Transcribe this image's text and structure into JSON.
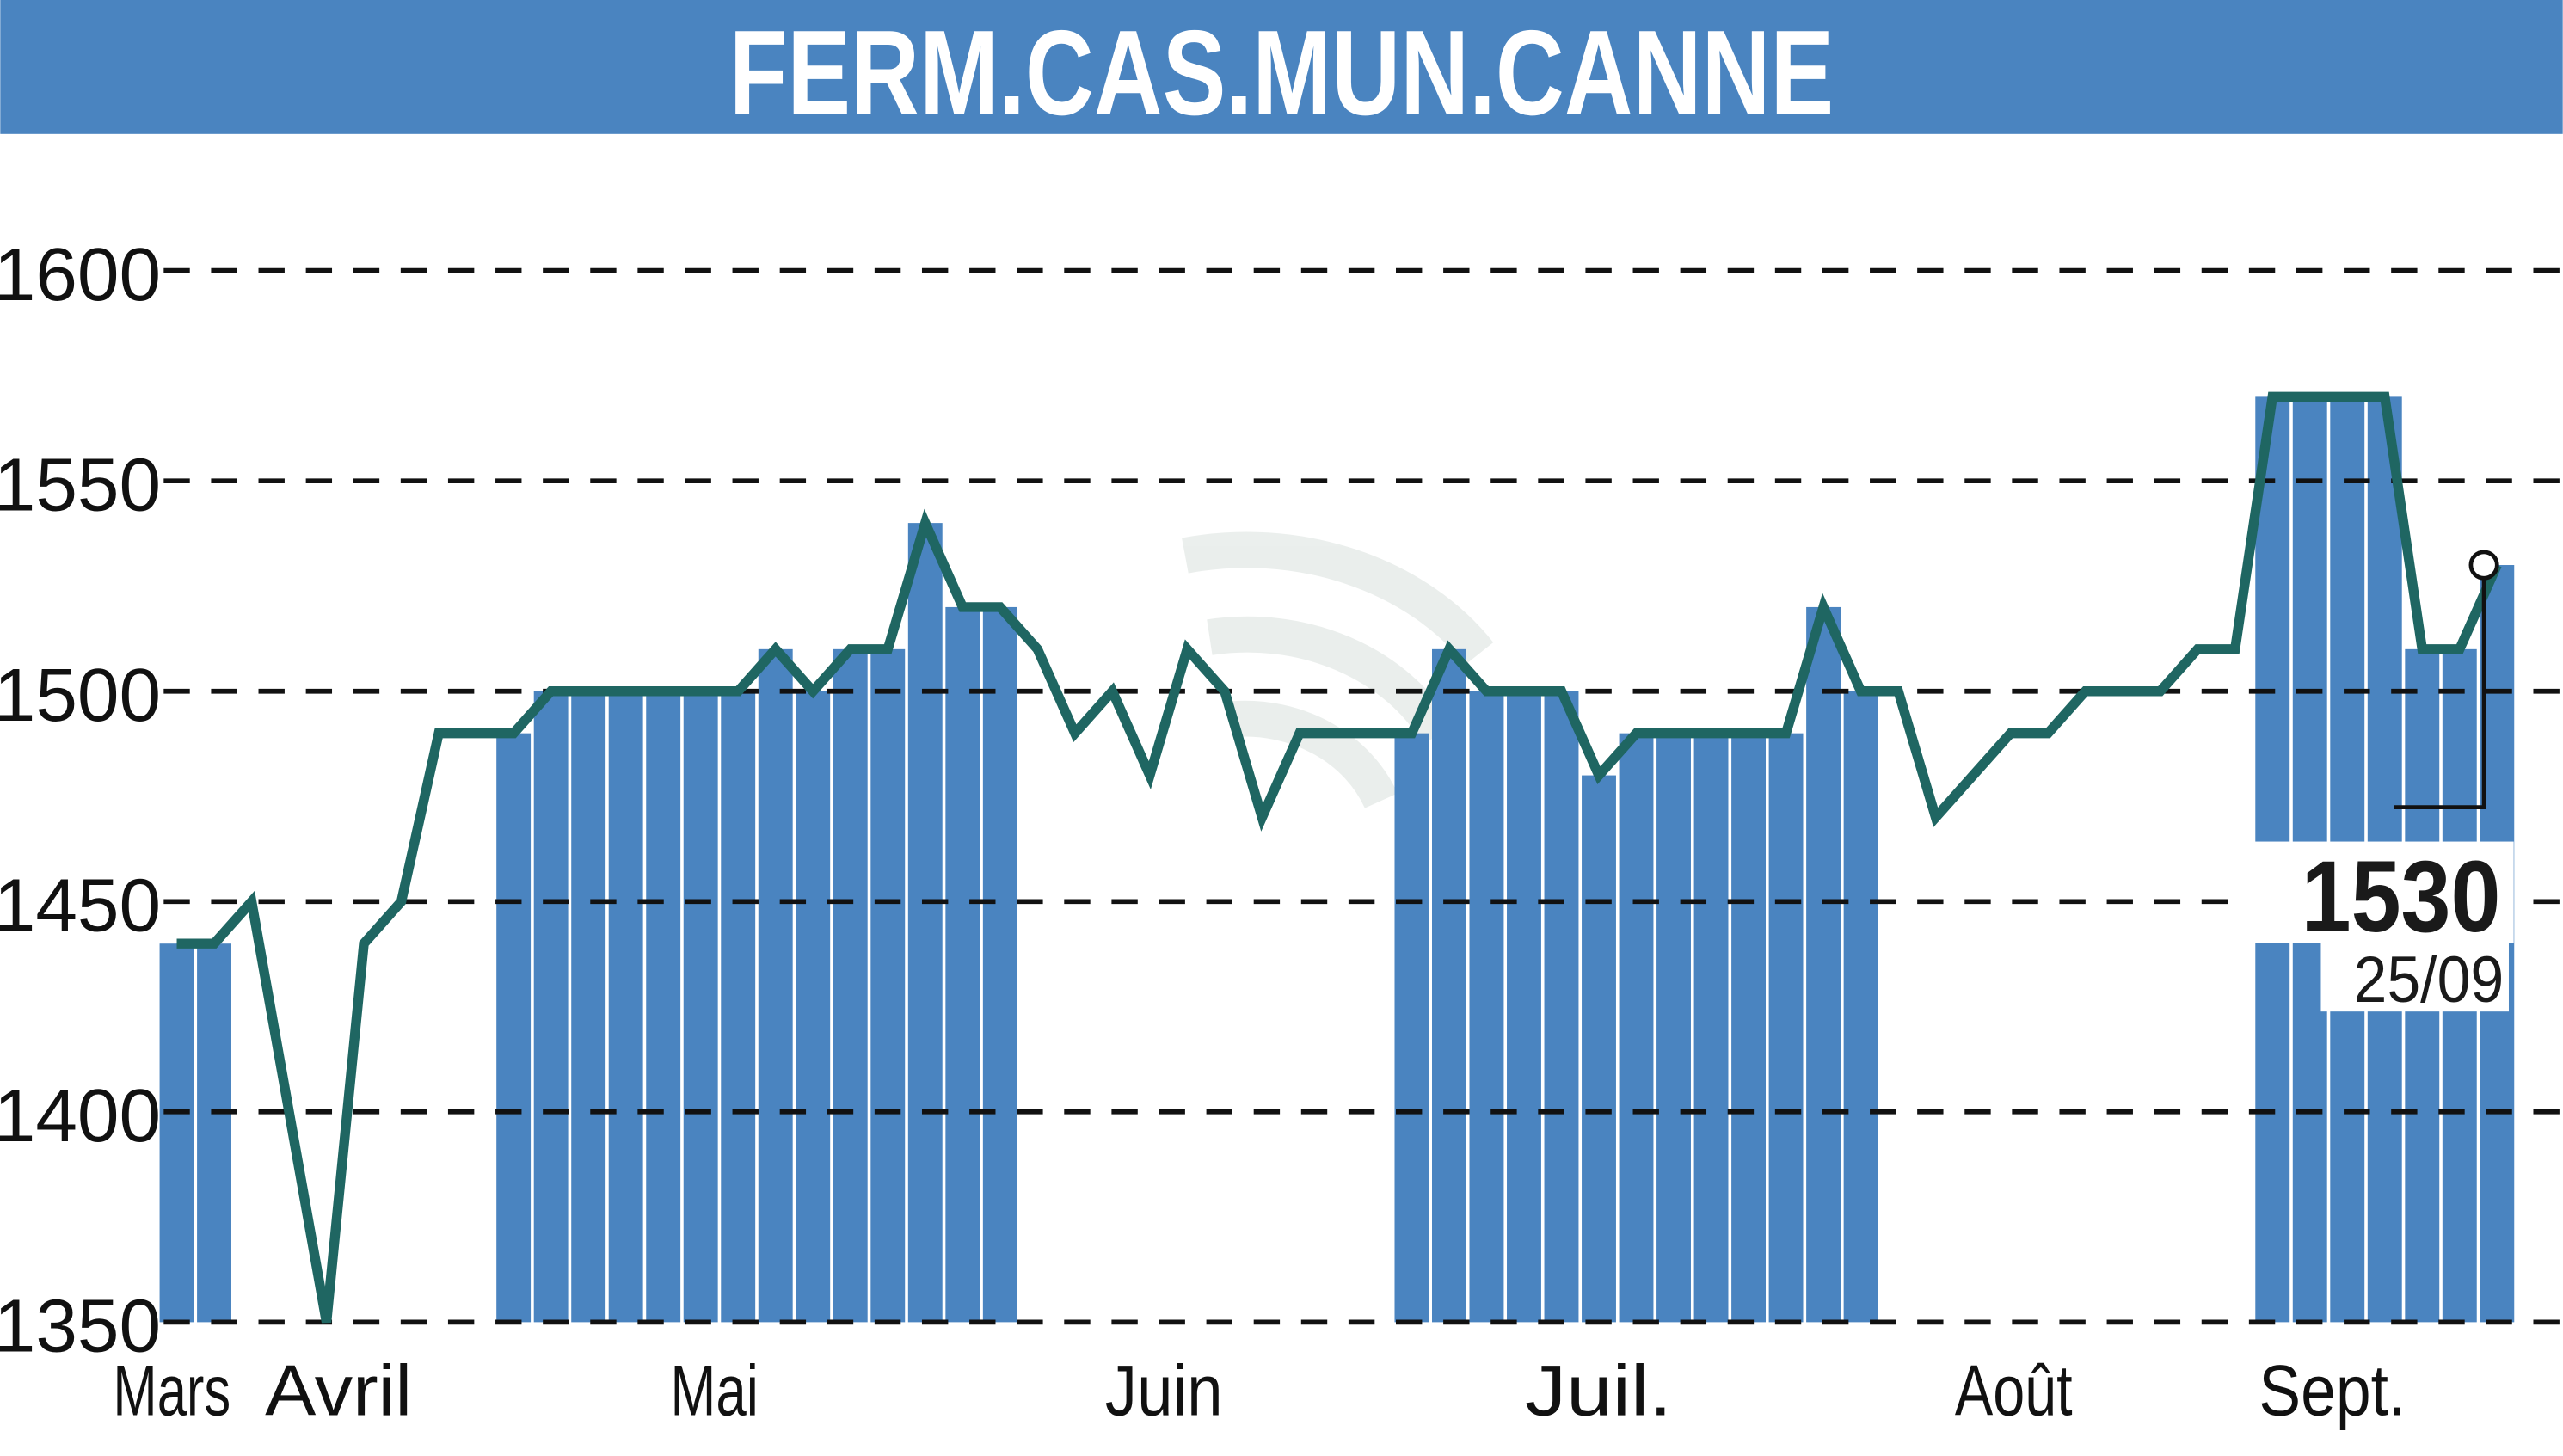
{
  "chart_data": {
    "type": "line",
    "title": "FERM.CAS.MUN.CANNE",
    "xlabel": "",
    "ylabel": "",
    "ylim": [
      1350,
      1600
    ],
    "yticks": [
      1350,
      1400,
      1450,
      1500,
      1550,
      1600
    ],
    "grid": true,
    "months": [
      "Mars",
      "Avril",
      "Mai",
      "Juin",
      "Juil.",
      "Août",
      "Sept."
    ],
    "values": [
      1440,
      1440,
      1450,
      1400,
      1350,
      1440,
      1450,
      1490,
      1490,
      1490,
      1500,
      1500,
      1500,
      1500,
      1500,
      1500,
      1510,
      1500,
      1510,
      1510,
      1540,
      1520,
      1520,
      1510,
      1490,
      1500,
      1480,
      1510,
      1500,
      1470,
      1490,
      1490,
      1490,
      1490,
      1510,
      1500,
      1500,
      1500,
      1480,
      1490,
      1490,
      1490,
      1490,
      1490,
      1520,
      1500,
      1500,
      1470,
      1480,
      1490,
      1490,
      1500,
      1500,
      1500,
      1510,
      1510,
      1570,
      1570,
      1570,
      1570,
      1510,
      1510,
      1530
    ],
    "shaded_months": [
      "Mars",
      "Mai",
      "Juil.",
      "Sept."
    ],
    "last_value": "1530",
    "last_date": "25/09",
    "colors": {
      "header": "#4a84c0",
      "bars": "#4a84c0",
      "line": "#1f6662",
      "grid": "#111111"
    }
  }
}
